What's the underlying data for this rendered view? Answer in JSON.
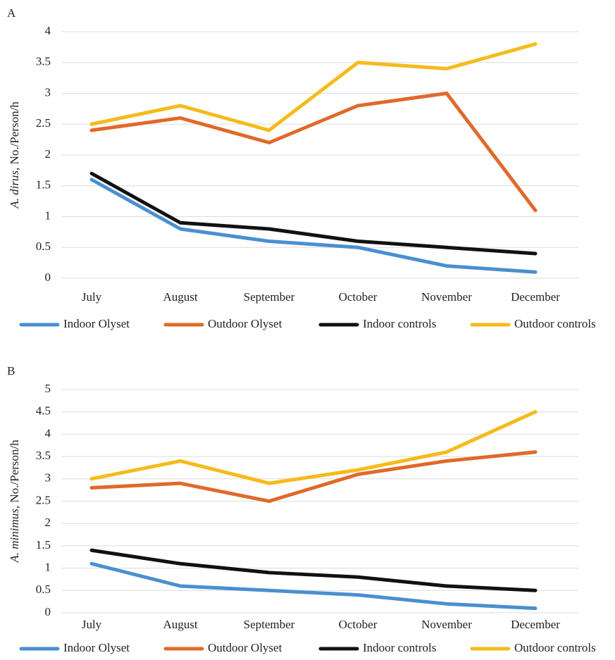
{
  "chart_data": [
    {
      "type": "line",
      "panel_label": "A",
      "ylabel_italic": "A. dirus",
      "ylabel": ", No./Person/h",
      "categories": [
        "July",
        "August",
        "September",
        "October",
        "November",
        "December"
      ],
      "series": [
        {
          "name": "Indoor Olyset",
          "color": "#4a8fd0",
          "values": [
            1.6,
            0.8,
            0.6,
            0.5,
            0.2,
            0.1
          ]
        },
        {
          "name": "Outdoor Olyset",
          "color": "#e0692a",
          "values": [
            2.4,
            2.6,
            2.2,
            2.8,
            3.0,
            1.1
          ]
        },
        {
          "name": "Indoor controls",
          "color": "#111111",
          "values": [
            1.7,
            0.9,
            0.8,
            0.6,
            0.5,
            0.4
          ]
        },
        {
          "name": "Outdoor controls",
          "color": "#f5bb1c",
          "values": [
            2.5,
            2.8,
            2.4,
            3.5,
            3.4,
            3.8
          ]
        }
      ],
      "ylim": [
        0,
        4
      ],
      "yticks": [
        0,
        0.5,
        1,
        1.5,
        2,
        2.5,
        3,
        3.5,
        4
      ],
      "grid": true,
      "legend": "bottom"
    },
    {
      "type": "line",
      "panel_label": "B",
      "ylabel_italic": "A. minimus",
      "ylabel": ", No./Person/h",
      "categories": [
        "July",
        "August",
        "September",
        "October",
        "November",
        "December"
      ],
      "series": [
        {
          "name": "Indoor Olyset",
          "color": "#4a8fd0",
          "values": [
            1.1,
            0.6,
            0.5,
            0.4,
            0.2,
            0.1
          ]
        },
        {
          "name": "Outdoor Olyset",
          "color": "#e0692a",
          "values": [
            2.8,
            2.9,
            2.5,
            3.1,
            3.4,
            3.6
          ]
        },
        {
          "name": "Indoor controls",
          "color": "#111111",
          "values": [
            1.4,
            1.1,
            0.9,
            0.8,
            0.6,
            0.5
          ]
        },
        {
          "name": "Outdoor controls",
          "color": "#f5bb1c",
          "values": [
            3.0,
            3.4,
            2.9,
            3.2,
            3.6,
            4.5
          ]
        }
      ],
      "ylim": [
        0,
        5
      ],
      "yticks": [
        0,
        0.5,
        1,
        1.5,
        2,
        2.5,
        3,
        3.5,
        4,
        4.5,
        5
      ],
      "grid": true,
      "legend": "bottom"
    }
  ]
}
